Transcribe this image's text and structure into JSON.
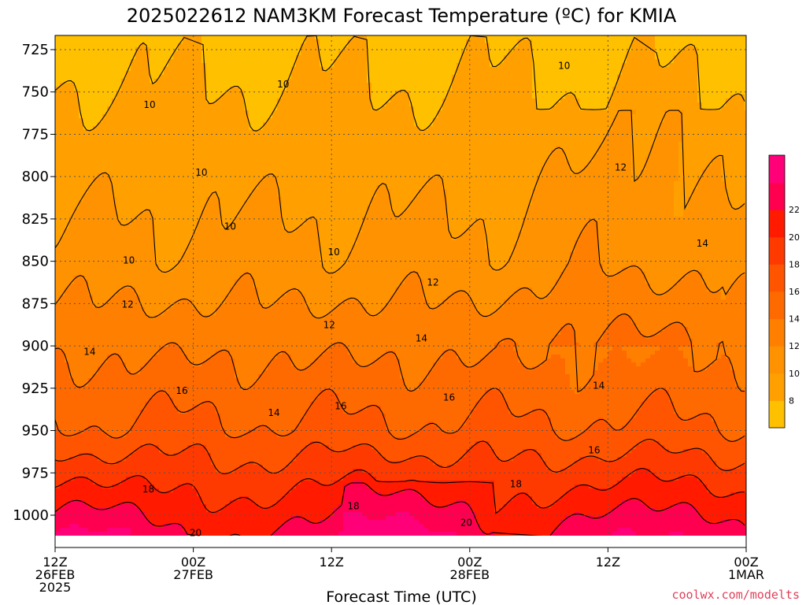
{
  "chart_data": {
    "type": "heatmap",
    "title": "2025022612 NAM3KM Forecast Temperature (ºC) for KMIA",
    "xlabel": "Forecast Time (UTC)",
    "ylabel": "",
    "y_axis": {
      "ticks": [
        725,
        750,
        775,
        800,
        825,
        850,
        875,
        900,
        925,
        950,
        975,
        1000
      ],
      "range": [
        1014,
        716
      ],
      "inverted": true,
      "units": "hPa"
    },
    "x_axis": {
      "hours": [
        0,
        12,
        24,
        36,
        48,
        60
      ],
      "tick_labels": [
        {
          "line1": "12Z",
          "line2": "26FEB",
          "line3": "2025"
        },
        {
          "line1": "00Z",
          "line2": "27FEB",
          "line3": ""
        },
        {
          "line1": "12Z",
          "line2": "",
          "line3": ""
        },
        {
          "line1": "00Z",
          "line2": "28FEB",
          "line3": ""
        },
        {
          "line1": "12Z",
          "line2": "",
          "line3": ""
        },
        {
          "line1": "00Z",
          "line2": "1MAR",
          "line3": ""
        }
      ]
    },
    "grid": true,
    "colorbar": {
      "position": "right",
      "levels": [
        6,
        8,
        10,
        12,
        14,
        16,
        18,
        20,
        22,
        24
      ],
      "tick_labels": [
        "8",
        "10",
        "12",
        "14",
        "16",
        "18",
        "20",
        "22"
      ],
      "colors": [
        "#ffc000",
        "#ffa000",
        "#ff9200",
        "#ff8000",
        "#ff6a00",
        "#ff5500",
        "#ff3a00",
        "#ff1a00",
        "#ff0050",
        "#ff0078"
      ]
    },
    "contour_levels": [
      8,
      10,
      12,
      14,
      16,
      18,
      20,
      22
    ],
    "contour_labels": [
      {
        "text": "10",
        "hour": 8.2,
        "p": 758
      },
      {
        "text": "10",
        "hour": 12.7,
        "p": 798
      },
      {
        "text": "10",
        "hour": 19.8,
        "p": 746
      },
      {
        "text": "10",
        "hour": 15.2,
        "p": 830
      },
      {
        "text": "10",
        "hour": 6.4,
        "p": 850
      },
      {
        "text": "10",
        "hour": 24.2,
        "p": 845
      },
      {
        "text": "10",
        "hour": 44.2,
        "p": 735
      },
      {
        "text": "12",
        "hour": 6.3,
        "p": 876
      },
      {
        "text": "12",
        "hour": 23.8,
        "p": 888
      },
      {
        "text": "12",
        "hour": 32.8,
        "p": 863
      },
      {
        "text": "12",
        "hour": 49.1,
        "p": 795
      },
      {
        "text": "14",
        "hour": 3.0,
        "p": 904
      },
      {
        "text": "14",
        "hour": 19.0,
        "p": 940
      },
      {
        "text": "14",
        "hour": 31.8,
        "p": 896
      },
      {
        "text": "14",
        "hour": 47.2,
        "p": 924
      },
      {
        "text": "14",
        "hour": 56.2,
        "p": 840
      },
      {
        "text": "16",
        "hour": 11.0,
        "p": 927
      },
      {
        "text": "16",
        "hour": 24.8,
        "p": 936
      },
      {
        "text": "16",
        "hour": 34.2,
        "p": 931
      },
      {
        "text": "16",
        "hour": 46.8,
        "p": 962
      },
      {
        "text": "18",
        "hour": 8.1,
        "p": 985
      },
      {
        "text": "18",
        "hour": 25.9,
        "p": 995
      },
      {
        "text": "18",
        "hour": 40.0,
        "p": 982
      },
      {
        "text": "20",
        "hour": 12.2,
        "p": 1011
      },
      {
        "text": "20",
        "hour": 35.7,
        "p": 1005
      }
    ],
    "surface_pressure_hpa": 1012
  },
  "credit": "coolwx.com/modelts"
}
